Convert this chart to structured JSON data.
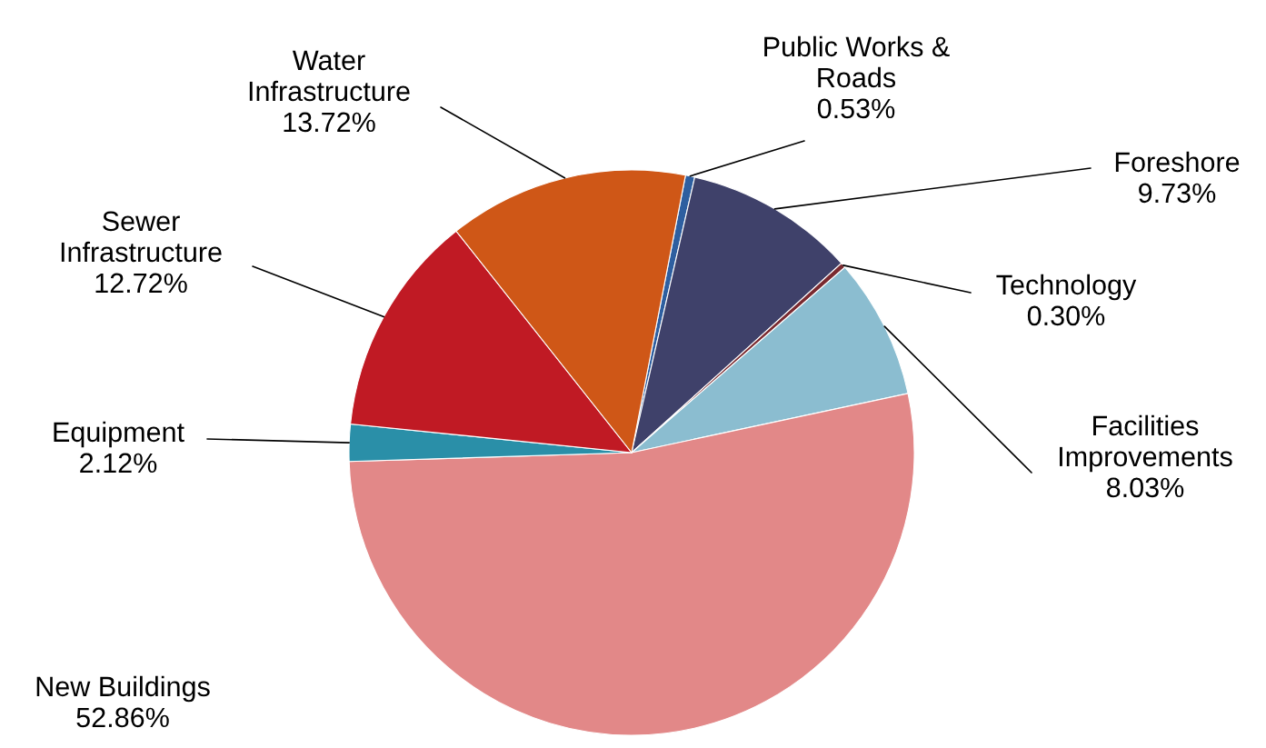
{
  "chart_data": {
    "type": "pie",
    "categories": [
      "Public Works &\nRoads",
      "Foreshore",
      "Technology",
      "Facilities\nImprovements",
      "New Buildings",
      "Equipment",
      "Sewer\nInfrastructure",
      "Water\nInfrastructure"
    ],
    "values": [
      0.53,
      9.73,
      0.3,
      8.03,
      52.86,
      2.12,
      12.72,
      13.72
    ],
    "value_labels": [
      "0.53%",
      "9.73%",
      "0.30%",
      "8.03%",
      "52.86%",
      "2.12%",
      "12.72%",
      "13.72%"
    ],
    "colors": [
      "#2e5fa0",
      "#3f416a",
      "#7a2a30",
      "#8bbdd0",
      "#e28888",
      "#2a8fa8",
      "#c01a24",
      "#cf5717"
    ],
    "legend": false
  }
}
